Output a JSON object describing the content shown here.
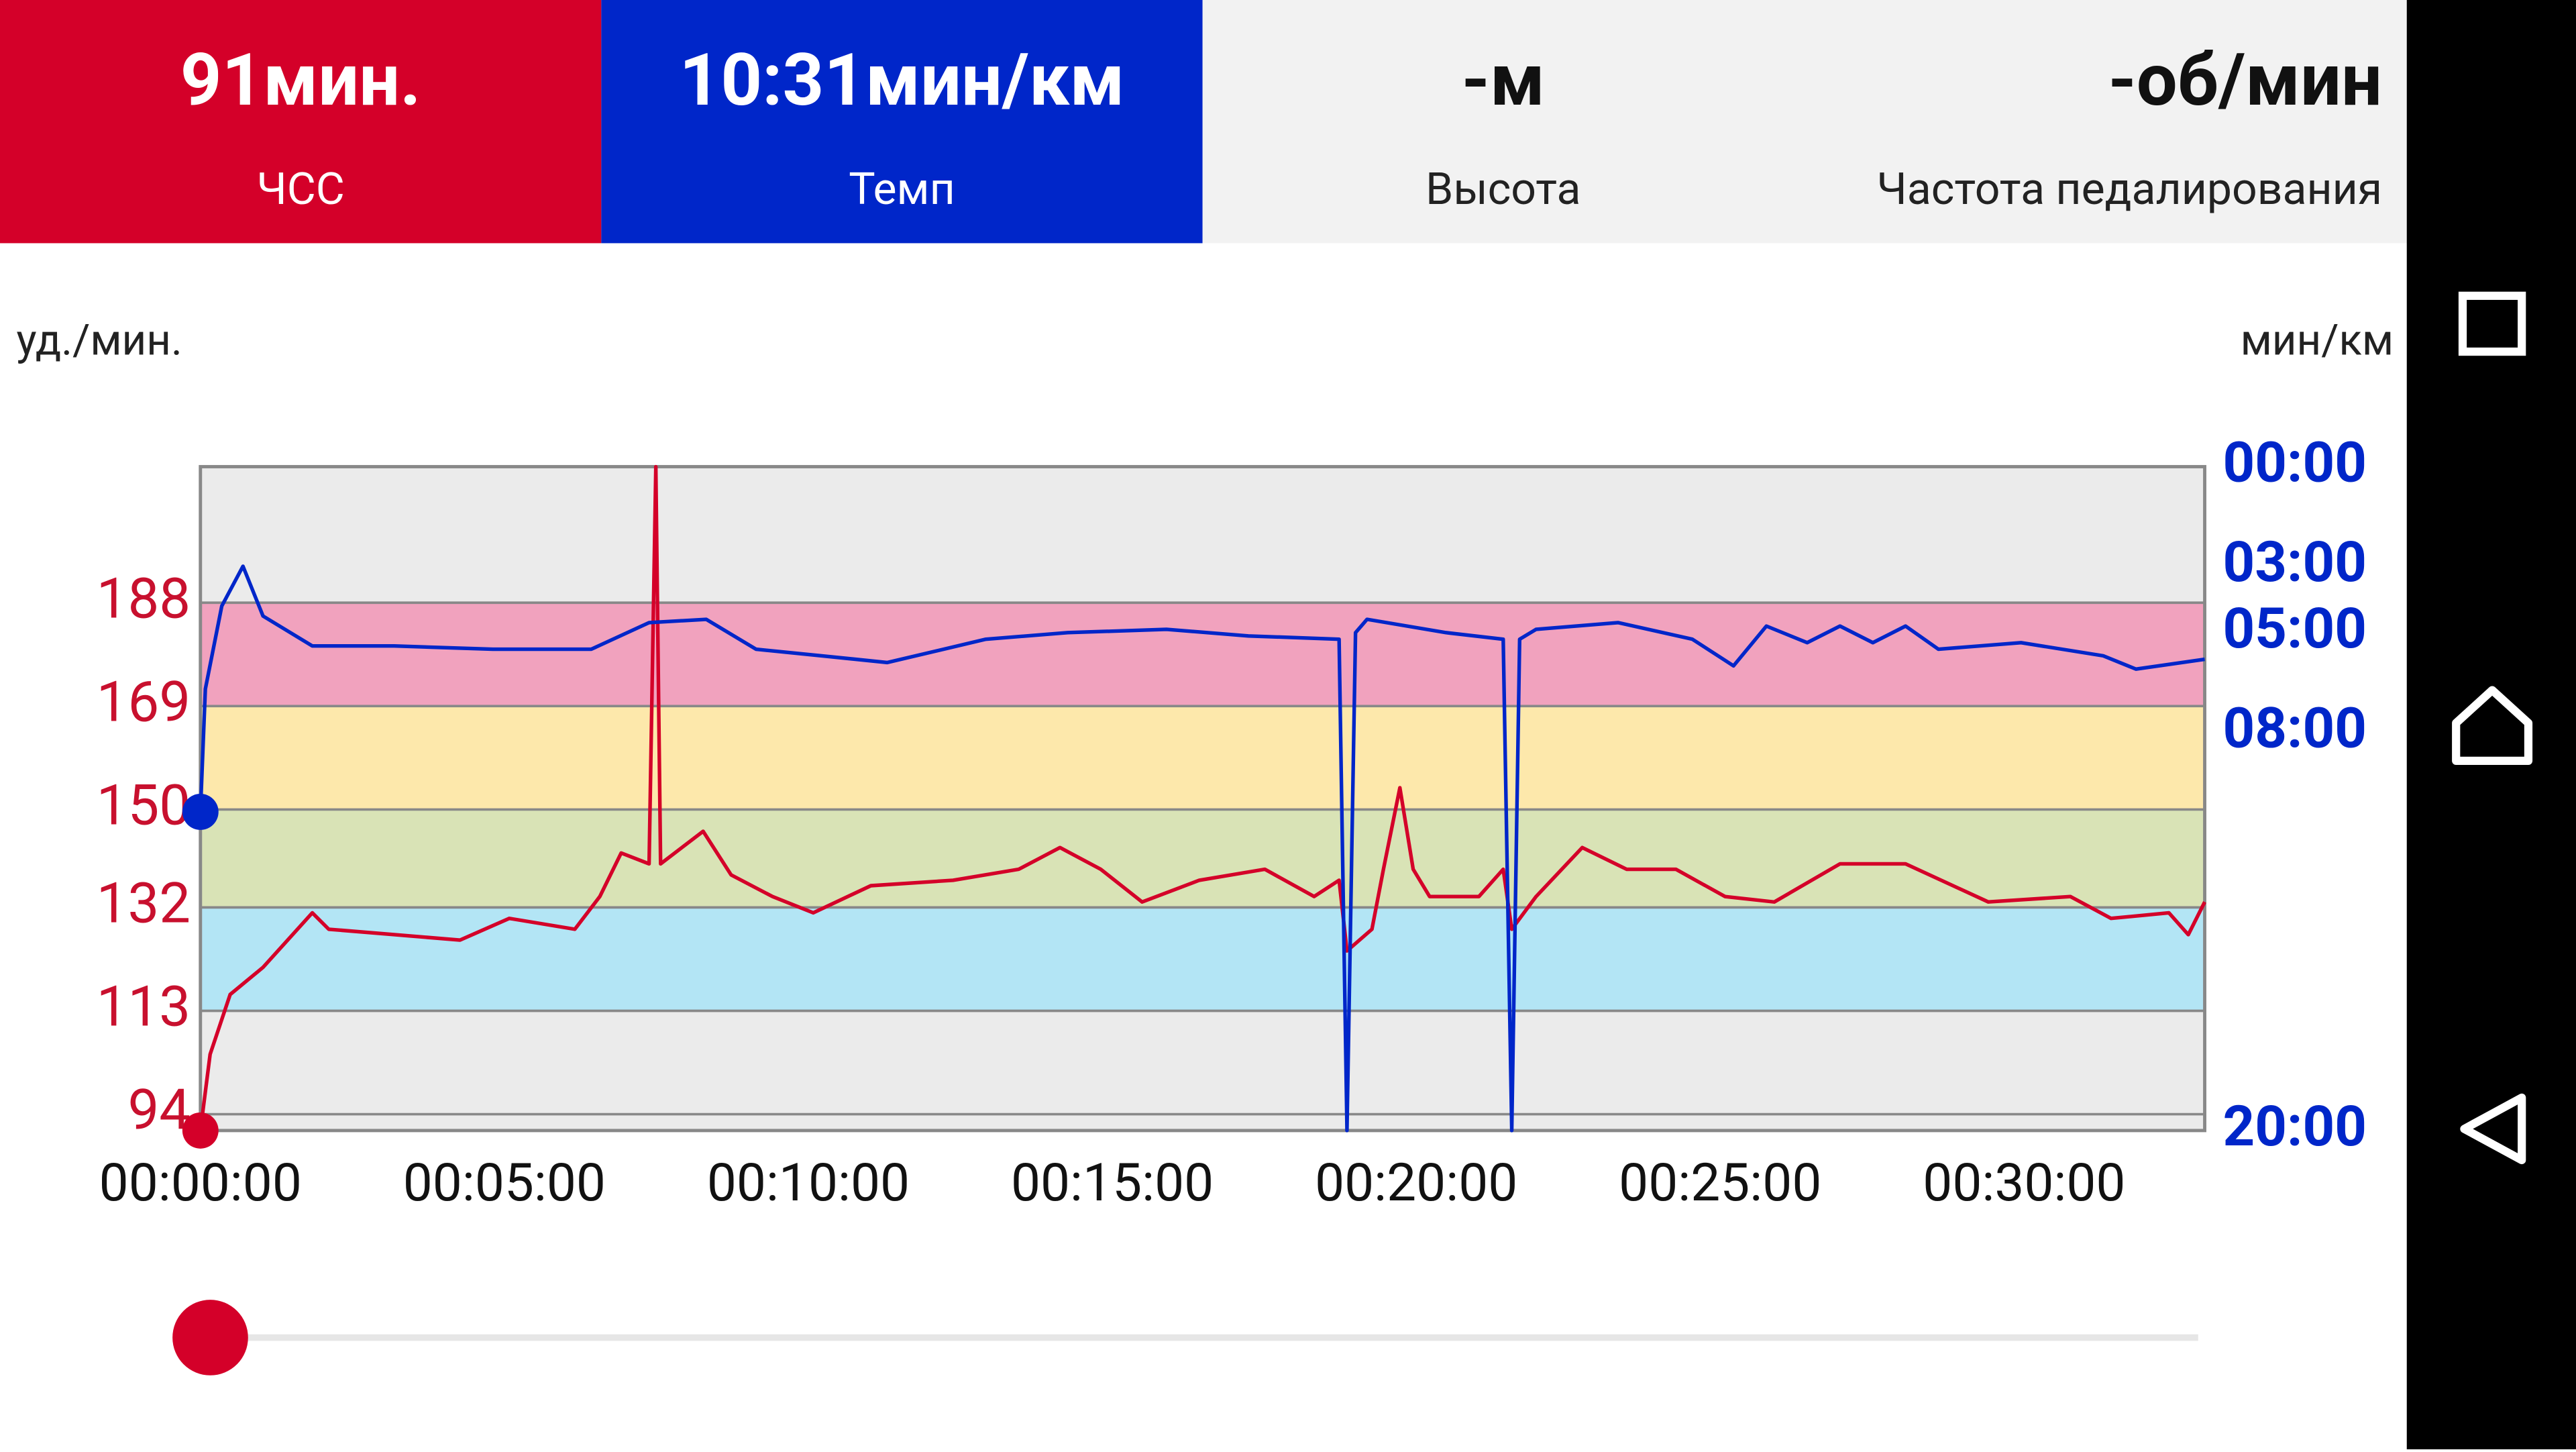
{
  "header_tiles": [
    {
      "value": "91мин.",
      "label": "ЧСС",
      "color": "#d40029"
    },
    {
      "value": "10:31мин/км",
      "label": "Темп",
      "color": "#0026c9"
    },
    {
      "value": "-м",
      "label": "Высота",
      "color": "#f2f2f2"
    },
    {
      "value": "-об/мин",
      "label": "Частота педалирования",
      "color": "#f2f2f2"
    }
  ],
  "chart_data": {
    "type": "line",
    "y_label": "уд./мин.",
    "y2_label": "мин/км",
    "xlim": [
      0,
      32.97
    ],
    "xticks": [
      {
        "value": 0,
        "label": "00:00:00"
      },
      {
        "value": 5,
        "label": "00:05:00"
      },
      {
        "value": 10,
        "label": "00:10:00"
      },
      {
        "value": 15,
        "label": "00:15:00"
      },
      {
        "value": 20,
        "label": "00:20:00"
      },
      {
        "value": 25,
        "label": "00:25:00"
      },
      {
        "value": 30,
        "label": "00:30:00"
      }
    ],
    "ylim": [
      91,
      213
    ],
    "yticks": [
      94,
      113,
      132,
      150,
      169,
      188
    ],
    "y2lim": [
      20,
      0
    ],
    "y2ticks": [
      {
        "value": 0,
        "label": "00:00"
      },
      {
        "value": 3,
        "label": "03:00"
      },
      {
        "value": 5,
        "label": "05:00"
      },
      {
        "value": 8,
        "label": "08:00"
      },
      {
        "value": 20,
        "label": "20:00"
      }
    ],
    "zones": [
      {
        "from": 113,
        "to": 132,
        "color": "#b3e5f5"
      },
      {
        "from": 132,
        "to": 150,
        "color": "#d9e3b6"
      },
      {
        "from": 150,
        "to": 169,
        "color": "#fde8ab"
      },
      {
        "from": 169,
        "to": 188,
        "color": "#f1a2be"
      }
    ],
    "grid": true,
    "series": [
      {
        "color": "#d40029",
        "x": [
          0,
          0.16,
          0.49,
          1.03,
          1.84,
          2.11,
          3.19,
          4.27,
          5.08,
          6.16,
          6.57,
          6.92,
          7.38,
          7.49,
          7.57,
          8.27,
          8.73,
          9.41,
          10.08,
          11.03,
          12.38,
          13.46,
          14.14,
          14.81,
          15.49,
          16.43,
          17.51,
          18.32,
          18.73,
          18.86,
          19.27,
          19.46,
          19.73,
          19.95,
          20.22,
          21.03,
          21.43,
          21.57,
          21.97,
          22.73,
          23.46,
          24.27,
          25.08,
          25.89,
          26.97,
          28.05,
          29.41,
          30.76,
          31.43,
          32.38,
          32.7,
          32.97
        ],
        "values": [
          91,
          105,
          116,
          121,
          131,
          128,
          127,
          126,
          130,
          128,
          134,
          142,
          140,
          213,
          140,
          146,
          138,
          134,
          131,
          136,
          137,
          139,
          143,
          139,
          133,
          137,
          139,
          134,
          137,
          124,
          128,
          139,
          154,
          139,
          134,
          134,
          139,
          128,
          134,
          143,
          139,
          139,
          134,
          133,
          140,
          140,
          133,
          134,
          130,
          131,
          127,
          133
        ]
      },
      {
        "color": "#0026c9",
        "axis": "y2",
        "x": [
          0,
          0.08,
          0.35,
          0.7,
          1.03,
          1.84,
          3.19,
          4.81,
          6.43,
          7.38,
          8.32,
          9.14,
          10.22,
          11.3,
          12.92,
          14.27,
          15.89,
          17.24,
          18.73,
          18.86,
          19.0,
          19.19,
          20.49,
          21.43,
          21.57,
          21.7,
          21.97,
          23.32,
          24.54,
          25.22,
          25.76,
          26.43,
          26.97,
          27.51,
          28.05,
          28.59,
          29.95,
          31.3,
          31.84,
          32.97
        ],
        "values": [
          10.4,
          6.7,
          4.2,
          3.0,
          4.5,
          5.4,
          5.4,
          5.5,
          5.5,
          4.7,
          4.6,
          5.5,
          5.7,
          5.9,
          5.2,
          5.0,
          4.9,
          5.1,
          5.2,
          20,
          5.0,
          4.6,
          5.0,
          5.2,
          20,
          5.2,
          4.9,
          4.7,
          5.2,
          6.0,
          4.8,
          5.3,
          4.8,
          5.3,
          4.8,
          5.5,
          5.3,
          5.7,
          6.1,
          5.8
        ]
      }
    ]
  }
}
